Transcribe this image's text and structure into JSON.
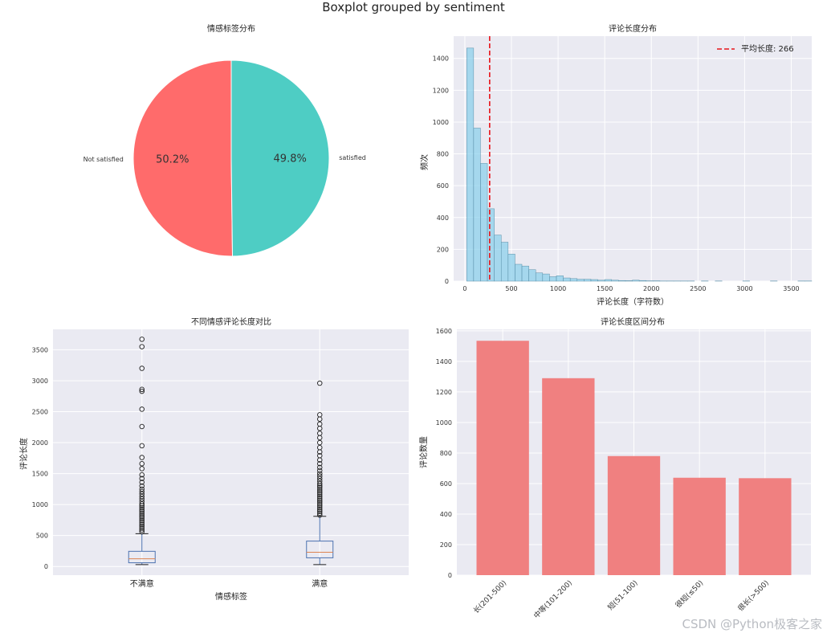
{
  "suptitle": "Boxplot grouped by sentiment",
  "watermark": "CSDN @Python极客之家",
  "chart_data": [
    {
      "type": "pie",
      "title": "情感标签分布",
      "labels": [
        "Not satisfied",
        "satisfied"
      ],
      "values": [
        50.2,
        49.8
      ],
      "autopct": [
        "50.2%",
        "49.8%"
      ],
      "colors": [
        "#ff6b6b",
        "#4ecdc4"
      ]
    },
    {
      "type": "histogram",
      "title": "评论长度分布",
      "xlabel": "评论长度（字符数）",
      "ylabel": "频次",
      "xlim": [
        -120,
        3720
      ],
      "ylim": [
        0,
        1540
      ],
      "xticks": [
        0,
        500,
        1000,
        1500,
        2000,
        2500,
        3000,
        3500
      ],
      "yticks": [
        0,
        200,
        400,
        600,
        800,
        1000,
        1200,
        1400
      ],
      "bin_width": 74,
      "bin_start": 20,
      "counts": [
        1465,
        962,
        740,
        455,
        290,
        245,
        170,
        106,
        95,
        72,
        52,
        45,
        28,
        34,
        20,
        16,
        12,
        12,
        10,
        6,
        10,
        6,
        4,
        3,
        6,
        4,
        2,
        2,
        1,
        1,
        1,
        1,
        1,
        0,
        1,
        0,
        1,
        0,
        0,
        0,
        1,
        0,
        0,
        0,
        1,
        0,
        0,
        0,
        1,
        1
      ],
      "mean_line": 266,
      "legend": "平均长度: 266",
      "color": "#87ceeb",
      "mean_color": "#e8141a"
    },
    {
      "type": "boxplot",
      "title": "不同情感评论长度对比",
      "xlabel": "情感标签",
      "ylabel": "评论长度",
      "categories": [
        "不满意",
        "满意"
      ],
      "ylim": [
        -140,
        3830
      ],
      "yticks": [
        0,
        500,
        1000,
        1500,
        2000,
        2500,
        3000,
        3500
      ],
      "boxes": [
        {
          "whislo": 30,
          "q1": 60,
          "med": 125,
          "q3": 245,
          "whishi": 530,
          "fliers": [
            560,
            590,
            620,
            650,
            680,
            710,
            740,
            770,
            800,
            830,
            860,
            890,
            920,
            950,
            980,
            1010,
            1050,
            1090,
            1130,
            1170,
            1210,
            1250,
            1300,
            1360,
            1420,
            1480,
            1580,
            1660,
            1760,
            1950,
            2260,
            2540,
            2830,
            2860,
            3200,
            3550,
            3670
          ]
        },
        {
          "whislo": 30,
          "q1": 140,
          "med": 230,
          "q3": 410,
          "whishi": 810,
          "fliers": [
            830,
            860,
            890,
            920,
            950,
            980,
            1010,
            1040,
            1070,
            1100,
            1130,
            1160,
            1190,
            1220,
            1250,
            1280,
            1310,
            1340,
            1380,
            1420,
            1460,
            1500,
            1550,
            1600,
            1660,
            1720,
            1790,
            1850,
            1920,
            2000,
            2080,
            2150,
            2230,
            2300,
            2380,
            2450,
            2960
          ]
        }
      ]
    },
    {
      "type": "bar",
      "title": "评论长度区间分布",
      "ylabel": "评论数量",
      "categories": [
        "长(201-500)",
        "中等(101-200)",
        "短(51-100)",
        "很短(≤50)",
        "很长(>500)"
      ],
      "values": [
        1535,
        1290,
        780,
        638,
        635
      ],
      "ylim": [
        0,
        1610
      ],
      "yticks": [
        0,
        200,
        400,
        600,
        800,
        1000,
        1200,
        1400,
        1600
      ],
      "color": "#f08080"
    }
  ]
}
